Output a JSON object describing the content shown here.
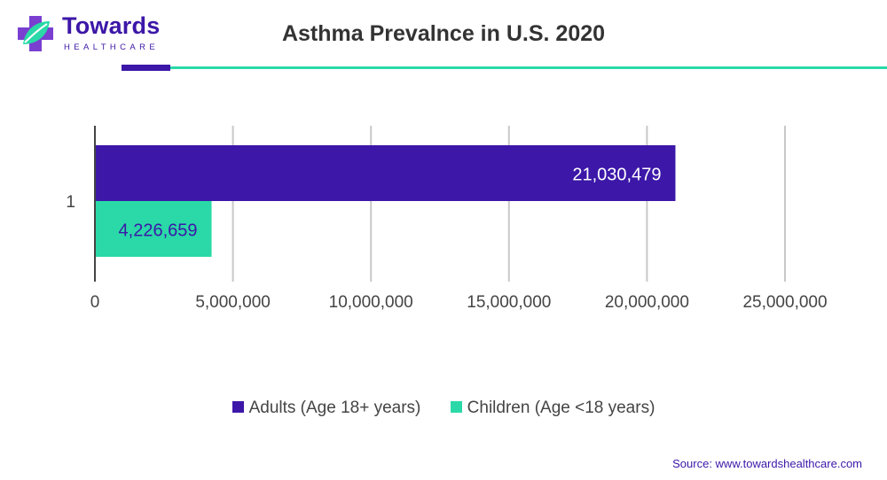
{
  "brand": {
    "name": "Towards",
    "sub": "HEALTHCARE",
    "primary_color": "#3c17a8",
    "accent_color": "#2ad9a7",
    "logo_icon": "plus-leaf-logo"
  },
  "chart_data": {
    "type": "bar",
    "orientation": "horizontal",
    "title": "Asthma Prevalnce in U.S. 2020",
    "categories": [
      "1"
    ],
    "series": [
      {
        "name": "Adults (Age 18+ years)",
        "values": [
          21030479
        ],
        "value_labels": [
          "21,030,479"
        ],
        "color": "#3c17a8",
        "label_color": "#ffffff"
      },
      {
        "name": "Children (Age <18 years)",
        "values": [
          4226659
        ],
        "value_labels": [
          "4,226,659"
        ],
        "color": "#2ad9a7",
        "label_color": "#3c17a8"
      }
    ],
    "xlim": [
      0,
      25000000
    ],
    "xticks": [
      0,
      5000000,
      10000000,
      15000000,
      20000000,
      25000000
    ],
    "xtick_labels": [
      "0",
      "5,000,000",
      "10,000,000",
      "15,000,000",
      "20,000,000",
      "25,000,000"
    ],
    "grid": "vertical",
    "legend_position": "bottom"
  },
  "source": "Source: www.towardshealthcare.com"
}
